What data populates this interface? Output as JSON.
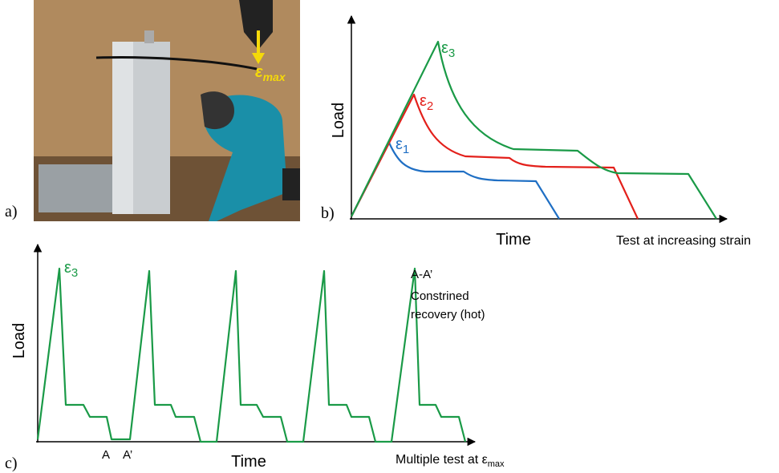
{
  "panel_a": {
    "label": "a)",
    "photo_label": {
      "symbol": "ε",
      "sub": "max"
    }
  },
  "panel_b": {
    "label": "b)",
    "y_label": "Load",
    "x_label": "Time",
    "caption": "Test at increasing strain",
    "strain_labels": [
      {
        "symbol": "ε",
        "sub": "1"
      },
      {
        "symbol": "ε",
        "sub": "2"
      },
      {
        "symbol": "ε",
        "sub": "3"
      }
    ]
  },
  "panel_c": {
    "label": "c)",
    "y_label": "Load",
    "x_label": "Time",
    "strain_label": {
      "symbol": "ε",
      "sub": "3"
    },
    "annotation": [
      "A-A’",
      "Constrined",
      "recovery (hot)"
    ],
    "point_labels": [
      "A",
      "A’"
    ],
    "caption": {
      "text": "Multiple test at ε",
      "sub": "max"
    }
  }
}
